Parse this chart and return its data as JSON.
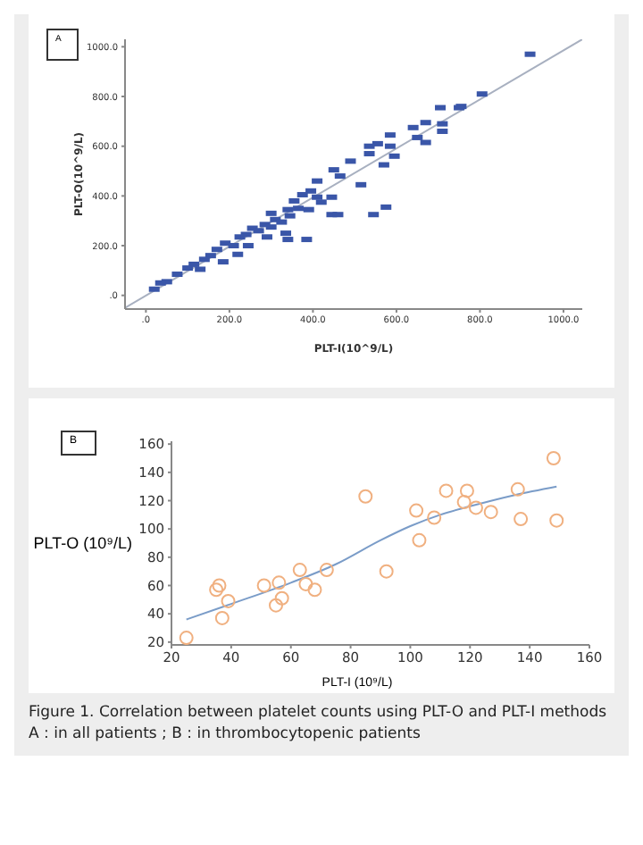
{
  "chart_data": [
    {
      "type": "scatter",
      "xlabel": "PLT-I(10^9/L)",
      "ylabel": "PLT-O(10^9/L)",
      "annotations": [
        "A"
      ],
      "grid": false,
      "xlim": [
        -50,
        1045
      ],
      "ylim": [
        -55,
        1030
      ],
      "xticks": [
        {
          "value": 0,
          "label": ".0"
        },
        {
          "value": 200,
          "label": "200.0"
        },
        {
          "value": 400,
          "label": "400.0"
        },
        {
          "value": 600,
          "label": "600.0"
        },
        {
          "value": 800,
          "label": "800.0"
        },
        {
          "value": 1000,
          "label": "1000.0"
        }
      ],
      "yticks": [
        {
          "value": 0,
          "label": ".0"
        },
        {
          "value": 200,
          "label": "200.0"
        },
        {
          "value": 400,
          "label": "400.0"
        },
        {
          "value": 600,
          "label": "600.0"
        },
        {
          "value": 800,
          "label": "800.0"
        },
        {
          "value": 1000,
          "label": "1000.0"
        }
      ],
      "series": [
        {
          "marker": "square",
          "color": "#3a56a8",
          "x": [
            920,
            805,
            755,
            750,
            705,
            670,
            640,
            710,
            710,
            650,
            670,
            585,
            555,
            585,
            595,
            570,
            535,
            535,
            490,
            450,
            465,
            515,
            410,
            395,
            375,
            355,
            340,
            310,
            285,
            255,
            225,
            190,
            155,
            115,
            75,
            50,
            20,
            35,
            100,
            170,
            210,
            240,
            270,
            300,
            325,
            345,
            290,
            340,
            385,
            335,
            390,
            410,
            445,
            445,
            460,
            545,
            575,
            420,
            245,
            220,
            185,
            140,
            130,
            300,
            365
          ],
          "values": [
            970,
            810,
            760,
            755,
            755,
            695,
            675,
            690,
            660,
            635,
            615,
            645,
            610,
            600,
            560,
            525,
            600,
            570,
            540,
            505,
            480,
            445,
            460,
            420,
            405,
            380,
            345,
            305,
            285,
            270,
            235,
            210,
            160,
            125,
            85,
            55,
            25,
            50,
            110,
            185,
            200,
            245,
            260,
            275,
            295,
            320,
            235,
            225,
            225,
            250,
            345,
            395,
            395,
            325,
            325,
            325,
            355,
            375,
            200,
            165,
            135,
            145,
            105,
            330,
            350
          ]
        },
        {
          "type": "line",
          "marker": "none",
          "color": "#a8b0c0",
          "x": [
            -50,
            1045
          ],
          "values": [
            -50,
            1030
          ]
        }
      ]
    },
    {
      "type": "scatter",
      "xlabel": "PLT-I (10⁹/L)",
      "ylabel": "PLT-O (10⁹/L)",
      "grid": false,
      "annotations": [
        "B",
        "Figure 1. Correlation between platelet counts using PLT-O and PLT-I methods",
        "A : in all patients ; B : in thrombocytopenic patients"
      ],
      "xlim": [
        20,
        160
      ],
      "ylim": [
        18,
        162
      ],
      "xticks": [
        20,
        40,
        60,
        80,
        100,
        120,
        140,
        160
      ],
      "yticks": [
        20,
        40,
        60,
        80,
        100,
        120,
        140,
        160
      ],
      "series": [
        {
          "marker": "circle",
          "color": "#f0b080",
          "x": [
            25,
            35,
            36,
            37,
            39,
            51,
            55,
            56,
            57,
            63,
            65,
            68,
            72,
            85,
            92,
            102,
            103,
            108,
            112,
            118,
            119,
            122,
            127,
            136,
            137,
            148,
            149
          ],
          "values": [
            23,
            57,
            60,
            37,
            49,
            60,
            46,
            62,
            51,
            71,
            61,
            57,
            71,
            123,
            70,
            113,
            92,
            108,
            127,
            119,
            127,
            115,
            112,
            128,
            107,
            150,
            106
          ]
        },
        {
          "type": "line",
          "marker": "none",
          "color": "#7a9cc8",
          "x": [
            25,
            40,
            60,
            75,
            90,
            100,
            110,
            120,
            135,
            149
          ],
          "values": [
            36,
            47,
            62,
            75,
            92,
            102,
            110,
            116,
            124,
            130
          ]
        }
      ]
    }
  ]
}
